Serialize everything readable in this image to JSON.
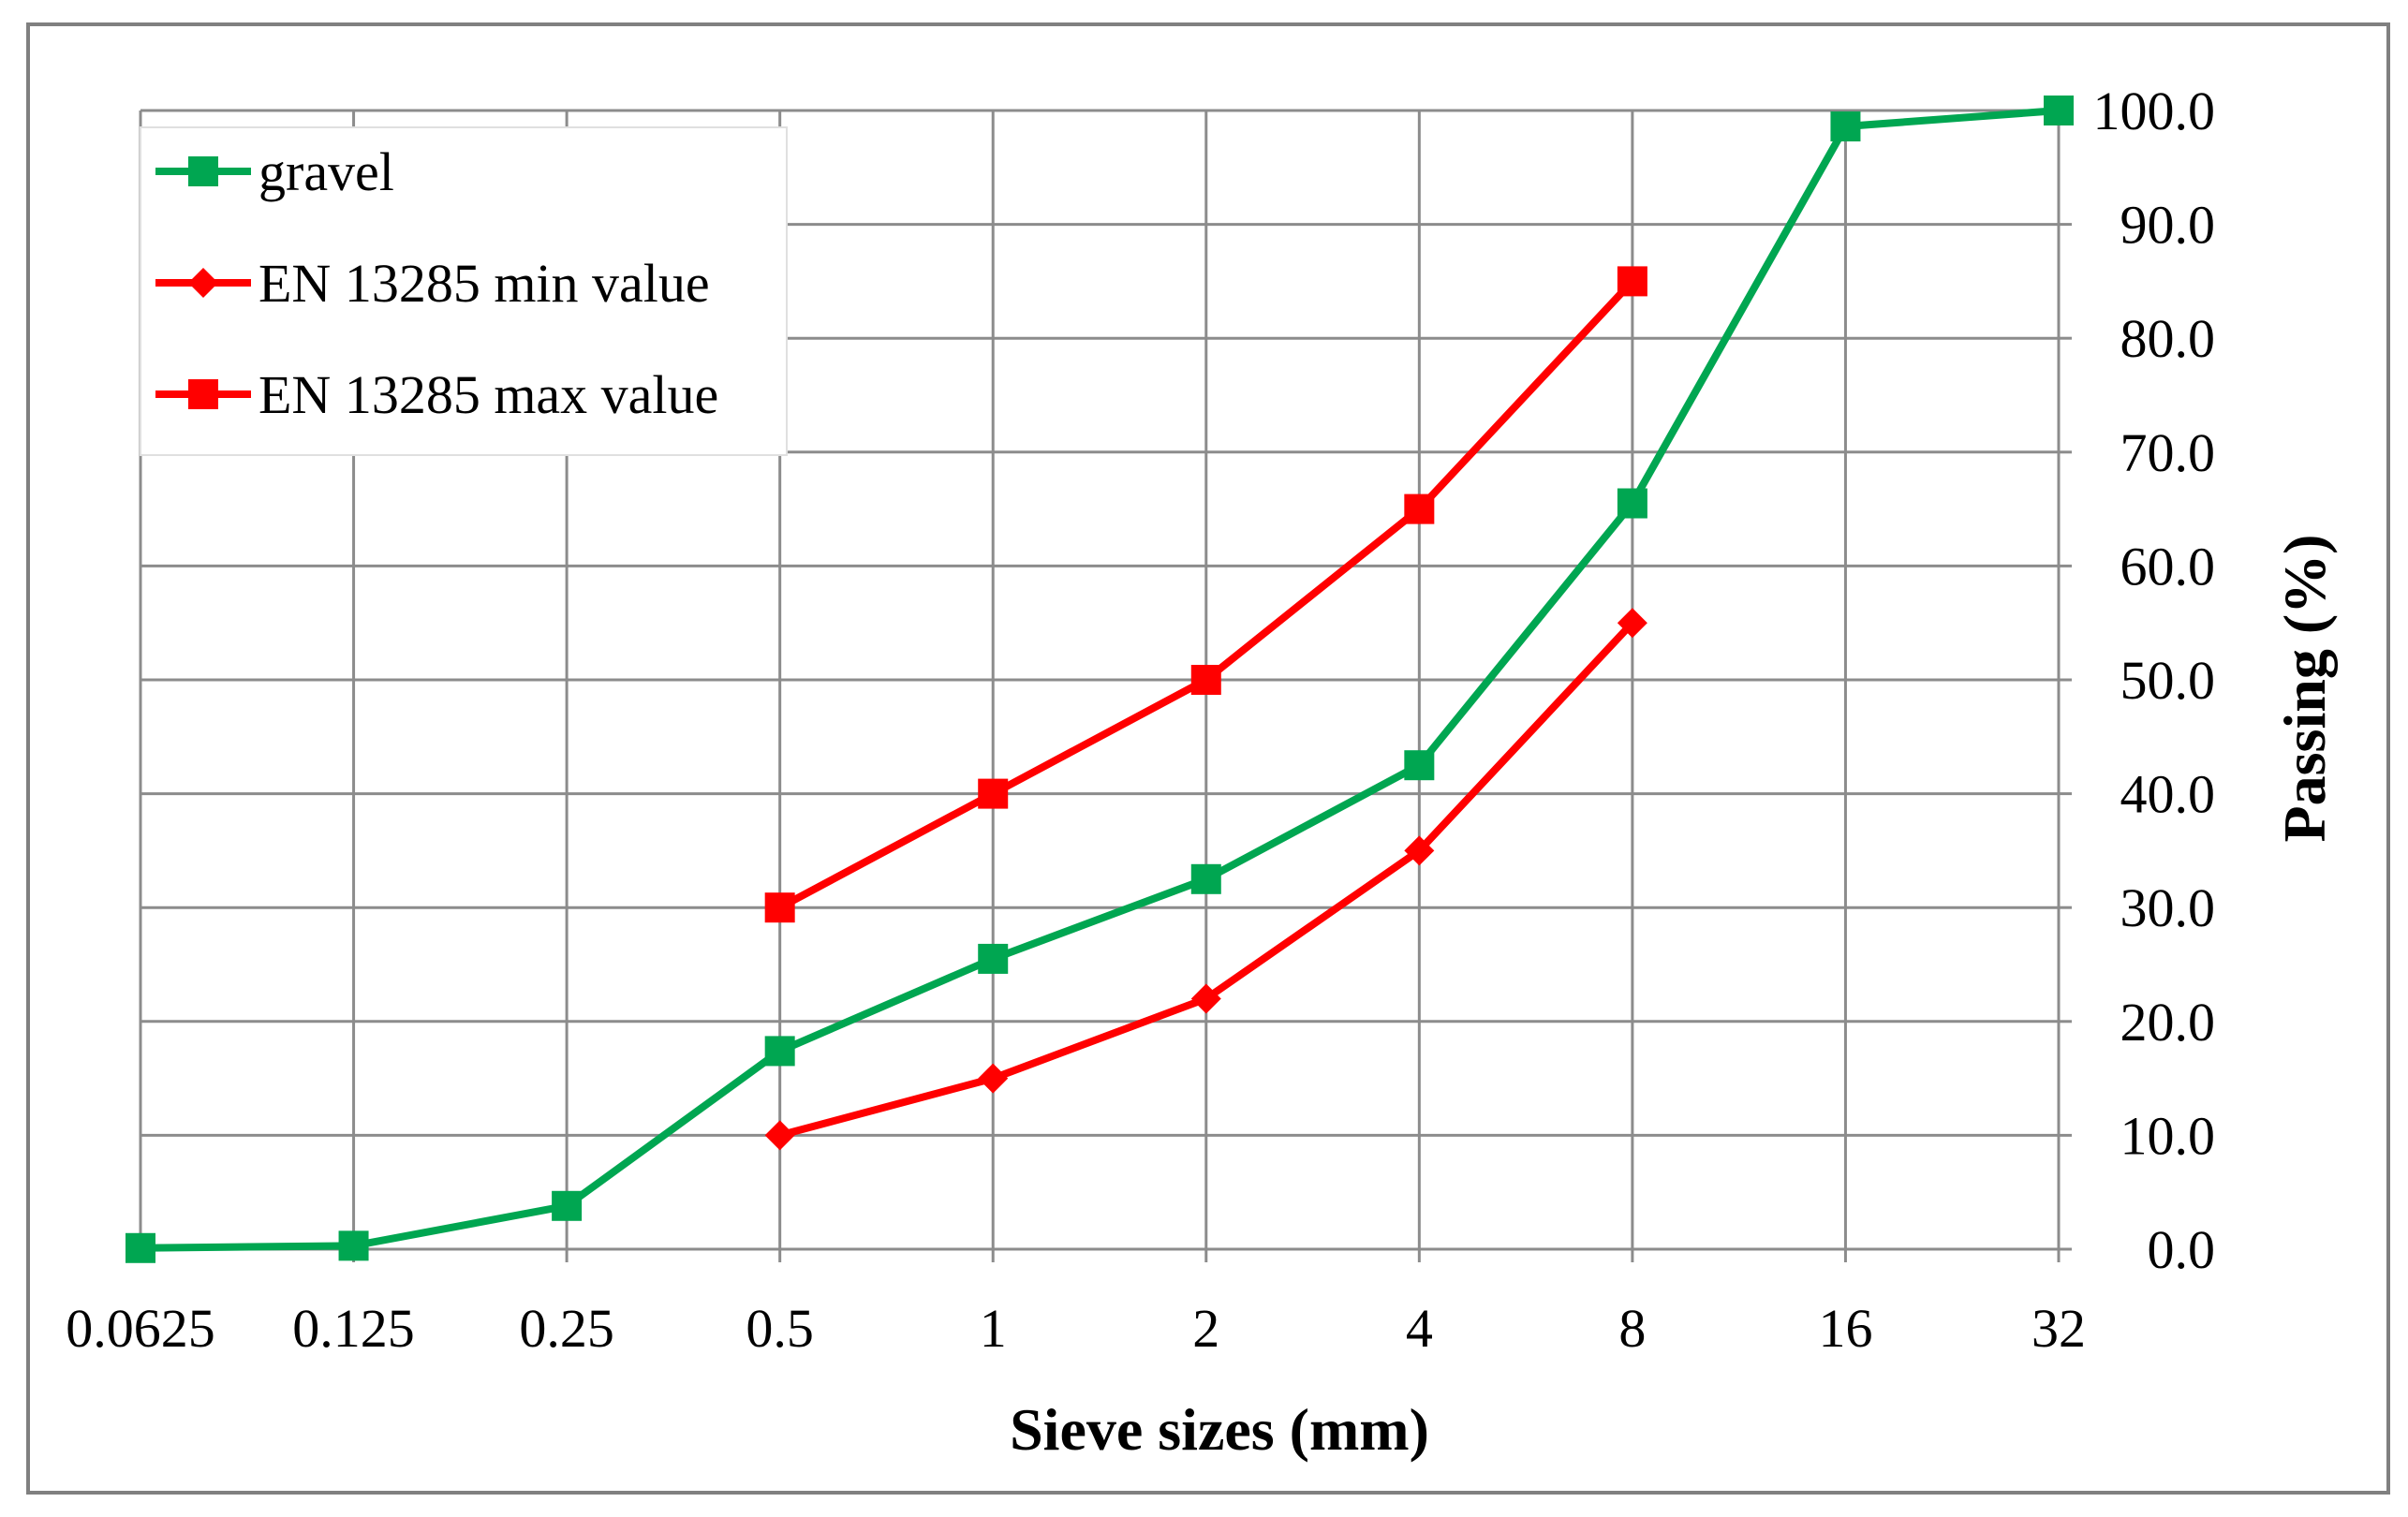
{
  "chart_data": {
    "type": "line",
    "categories": [
      "0.0625",
      "0.125",
      "0.25",
      "0.5",
      "1",
      "2",
      "4",
      "8",
      "16",
      "32"
    ],
    "xlabel": "Sieve sizes (mm)",
    "ylabel": "Passing (%)",
    "ylim": [
      0,
      100
    ],
    "y_ticks": [
      "0.0",
      "10.0",
      "20.0",
      "30.0",
      "40.0",
      "50.0",
      "60.0",
      "70.0",
      "80.0",
      "90.0",
      "100.0"
    ],
    "grid": true,
    "y_axis_side": "right",
    "legend_position": "top-left",
    "series": [
      {
        "name": "gravel",
        "color": "#00a651",
        "marker": "square",
        "values": [
          0.1,
          0.3,
          3.8,
          17.4,
          25.5,
          32.5,
          42.5,
          65.5,
          98.6,
          100.0
        ]
      },
      {
        "name": "EN 13285 min value",
        "color": "#ff0000",
        "marker": "diamond",
        "values": [
          null,
          null,
          null,
          10.0,
          15.0,
          22.0,
          35.0,
          55.0,
          null,
          null
        ]
      },
      {
        "name": "EN 13285 max value",
        "color": "#ff0000",
        "marker": "square",
        "values": [
          null,
          null,
          null,
          30.0,
          40.0,
          50.0,
          65.0,
          85.0,
          null,
          null
        ]
      }
    ]
  }
}
